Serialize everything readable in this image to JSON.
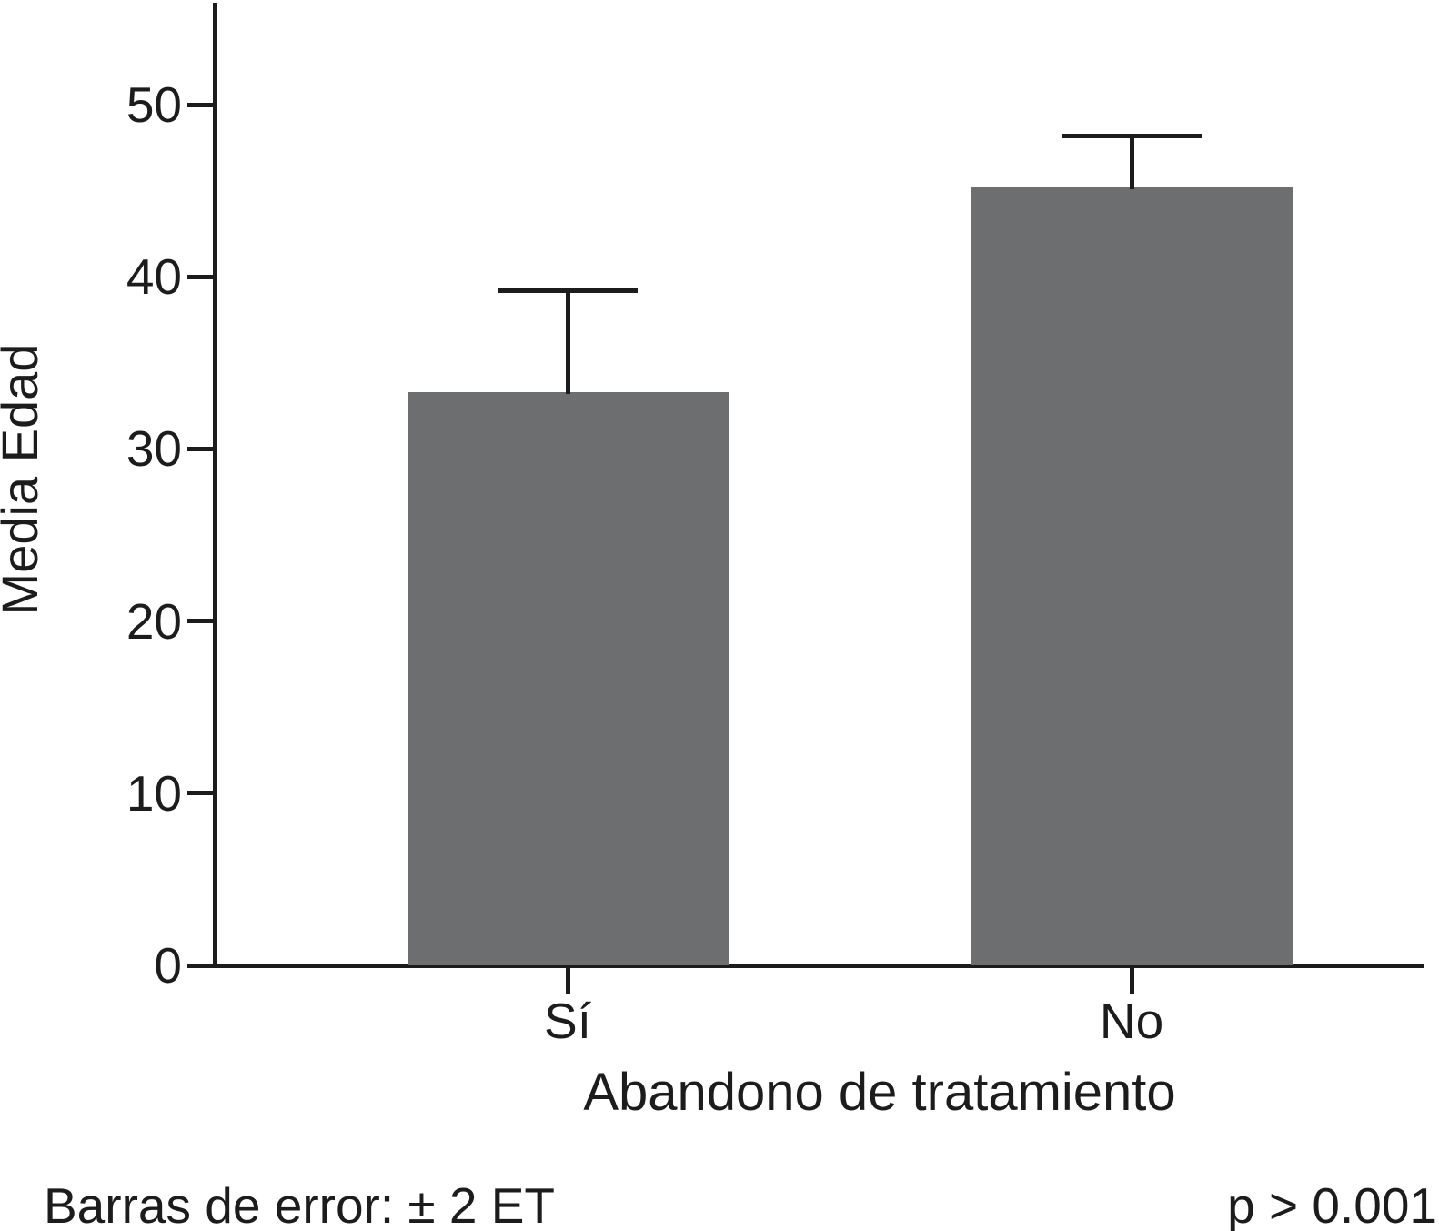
{
  "chart_data": {
    "type": "bar",
    "categories": [
      "Sí",
      "No"
    ],
    "values": [
      33.3,
      45.2
    ],
    "errors_plus": [
      5.9,
      3.0
    ],
    "ylabel": "Media Edad",
    "xlabel": "Abandono de tratamiento",
    "yticks": [
      0,
      10,
      20,
      30,
      40,
      50
    ],
    "ylim": [
      0,
      55.9
    ],
    "grid": false,
    "legend": false,
    "bar_color": "#6c6e70",
    "axis_color": "#1c1c1c",
    "error_note": "Barras de error: ± 2 ET",
    "p_note": "p > 0.001"
  }
}
